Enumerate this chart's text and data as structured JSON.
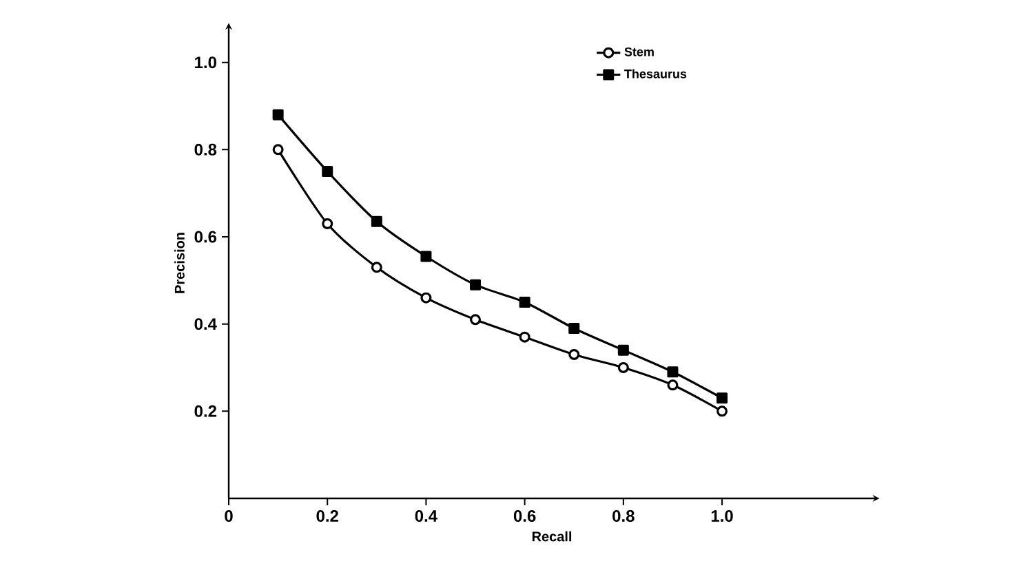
{
  "chart_data": {
    "type": "line",
    "xlabel": "Recall",
    "ylabel": "Precision",
    "xlim": [
      0,
      1.31
    ],
    "ylim": [
      0,
      1.08
    ],
    "xticks": [
      0,
      0.2,
      0.4,
      0.6,
      0.8,
      {
        "value": 1,
        "label": "1.0"
      }
    ],
    "yticks": [
      0.2,
      0.4,
      0.6,
      0.8,
      {
        "value": 1,
        "label": "1.0"
      }
    ],
    "x": [
      0.1,
      0.2,
      0.3,
      0.4,
      0.5,
      0.6,
      0.7,
      0.8,
      0.9,
      1.0
    ],
    "series": [
      {
        "name": "Stem",
        "color": "#000000",
        "marker": "circle",
        "values": [
          0.8,
          0.63,
          0.53,
          0.46,
          0.41,
          0.37,
          0.33,
          0.3,
          0.26,
          0.2
        ]
      },
      {
        "name": "Thesaurus",
        "color": "#000000",
        "marker": "square",
        "values": [
          0.88,
          0.75,
          0.635,
          0.555,
          0.49,
          0.45,
          0.39,
          0.34,
          0.29,
          0.23
        ]
      }
    ],
    "legend": "top right",
    "grid": false,
    "line_style": "solid"
  }
}
